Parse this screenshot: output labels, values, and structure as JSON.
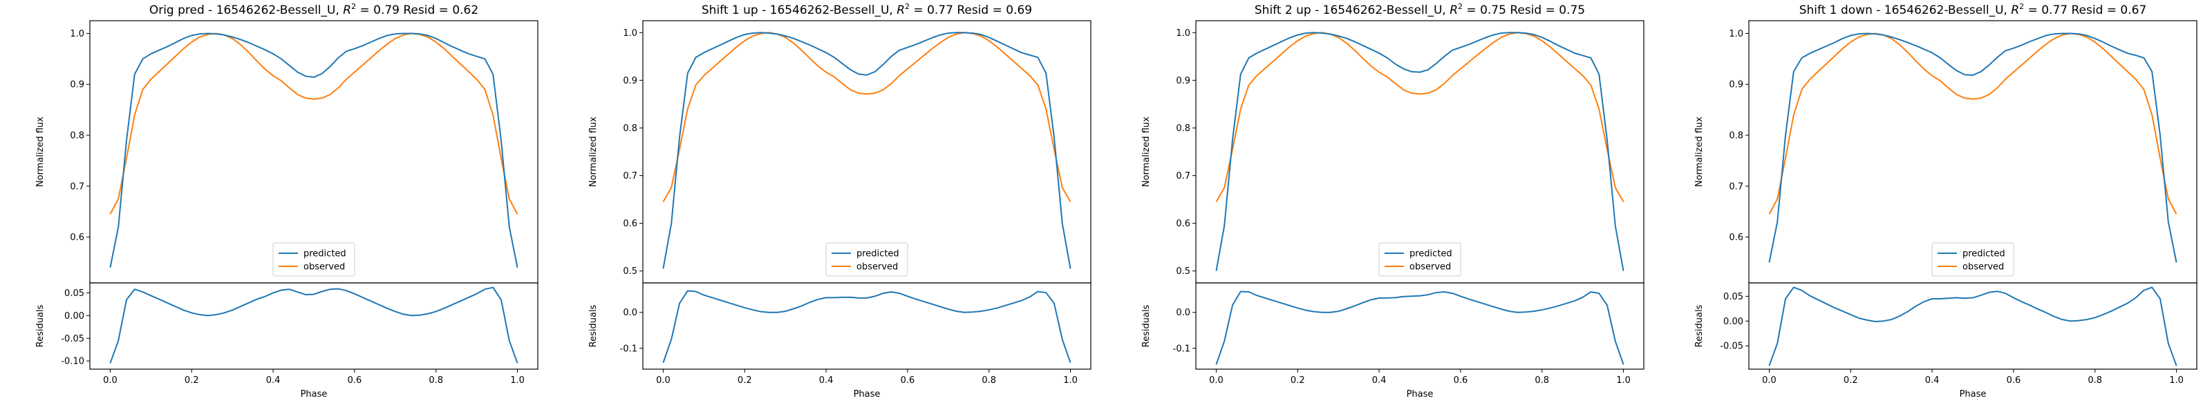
{
  "colors": {
    "predicted": "#1f77b4",
    "observed": "#ff7f0e"
  },
  "chart_data": [
    {
      "type": "line",
      "title": "Orig pred - 16546262-Bessell_U, $R^2 = 0.79$ Resid = 0.62",
      "title_parts": {
        "pre": "Orig pred - 16546262-Bessell_U, ",
        "sym": "R",
        "sup": "2",
        "post": " = 0.79 Resid = 0.62"
      },
      "xlabel": "Phase",
      "ylabel": "Normalized flux",
      "res_ylabel": "Residuals",
      "xlim": [
        -0.05,
        1.05
      ],
      "xticks": [
        0.0,
        0.2,
        0.4,
        0.6,
        0.8,
        1.0
      ],
      "ylim": [
        0.51,
        1.025
      ],
      "yticks": [
        0.6,
        0.7,
        0.8,
        0.9,
        1.0
      ],
      "res_ylim": [
        -0.118,
        0.072
      ],
      "res_yticks": [
        -0.1,
        -0.05,
        0.0,
        0.05
      ],
      "legend": {
        "position": "lower center",
        "entries": [
          "predicted",
          "observed"
        ]
      },
      "x": [
        0.0,
        0.02,
        0.04,
        0.06,
        0.08,
        0.1,
        0.12,
        0.14,
        0.16,
        0.18,
        0.2,
        0.22,
        0.24,
        0.26,
        0.28,
        0.3,
        0.32,
        0.34,
        0.36,
        0.38,
        0.4,
        0.42,
        0.44,
        0.46,
        0.48,
        0.5,
        0.52,
        0.54,
        0.56,
        0.58,
        0.6,
        0.62,
        0.64,
        0.66,
        0.68,
        0.7,
        0.72,
        0.74,
        0.76,
        0.78,
        0.8,
        0.82,
        0.84,
        0.86,
        0.88,
        0.9,
        0.92,
        0.94,
        0.96,
        0.98,
        1.0
      ],
      "series": [
        {
          "name": "predicted",
          "values": [
            0.54,
            0.62,
            0.79,
            0.92,
            0.95,
            0.96,
            0.967,
            0.974,
            0.982,
            0.99,
            0.996,
            0.999,
            1.0,
            0.999,
            0.997,
            0.993,
            0.988,
            0.982,
            0.975,
            0.968,
            0.96,
            0.95,
            0.937,
            0.924,
            0.916,
            0.914,
            0.921,
            0.935,
            0.952,
            0.965,
            0.97,
            0.976,
            0.983,
            0.99,
            0.996,
            0.999,
            1.0,
            1.0,
            0.999,
            0.996,
            0.99,
            0.982,
            0.974,
            0.967,
            0.96,
            0.955,
            0.95,
            0.92,
            0.79,
            0.62,
            0.54
          ]
        },
        {
          "name": "observed",
          "values": [
            0.645,
            0.675,
            0.755,
            0.84,
            0.89,
            0.91,
            0.925,
            0.94,
            0.955,
            0.97,
            0.983,
            0.993,
            0.998,
            1.0,
            0.997,
            0.99,
            0.978,
            0.963,
            0.946,
            0.93,
            0.917,
            0.907,
            0.893,
            0.88,
            0.873,
            0.871,
            0.873,
            0.88,
            0.893,
            0.91,
            0.924,
            0.938,
            0.952,
            0.966,
            0.979,
            0.99,
            0.997,
            1.0,
            0.998,
            0.993,
            0.983,
            0.97,
            0.955,
            0.94,
            0.925,
            0.91,
            0.89,
            0.84,
            0.755,
            0.675,
            0.645
          ]
        }
      ],
      "residuals": [
        -0.105,
        -0.055,
        0.035,
        0.058,
        0.052,
        0.044,
        0.036,
        0.028,
        0.02,
        0.012,
        0.006,
        0.002,
        0.0,
        0.002,
        0.006,
        0.012,
        0.02,
        0.028,
        0.036,
        0.042,
        0.05,
        0.056,
        0.058,
        0.052,
        0.046,
        0.047,
        0.053,
        0.058,
        0.059,
        0.055,
        0.048,
        0.04,
        0.032,
        0.024,
        0.016,
        0.009,
        0.003,
        0.0,
        0.001,
        0.004,
        0.009,
        0.016,
        0.024,
        0.032,
        0.04,
        0.048,
        0.058,
        0.062,
        0.035,
        -0.055,
        -0.105
      ]
    },
    {
      "type": "line",
      "title": "Shift 1 up - 16546262-Bessell_U, $R^2 = 0.77$ Resid = 0.69",
      "title_parts": {
        "pre": "Shift 1 up - 16546262-Bessell_U, ",
        "sym": "R",
        "sup": "2",
        "post": " = 0.77 Resid = 0.69"
      },
      "xlabel": "Phase",
      "ylabel": "Normalized flux",
      "res_ylabel": "Residuals",
      "xlim": [
        -0.05,
        1.05
      ],
      "xticks": [
        0.0,
        0.2,
        0.4,
        0.6,
        0.8,
        1.0
      ],
      "ylim": [
        0.475,
        1.025
      ],
      "yticks": [
        0.5,
        0.6,
        0.7,
        0.8,
        0.9,
        1.0
      ],
      "res_ylim": [
        -0.158,
        0.082
      ],
      "res_yticks": [
        -0.1,
        0.0
      ],
      "legend": {
        "position": "lower center",
        "entries": [
          "predicted",
          "observed"
        ]
      },
      "x": [
        0.0,
        0.02,
        0.04,
        0.06,
        0.08,
        0.1,
        0.12,
        0.14,
        0.16,
        0.18,
        0.2,
        0.22,
        0.24,
        0.26,
        0.28,
        0.3,
        0.32,
        0.34,
        0.36,
        0.38,
        0.4,
        0.42,
        0.44,
        0.46,
        0.48,
        0.5,
        0.52,
        0.54,
        0.56,
        0.58,
        0.6,
        0.62,
        0.64,
        0.66,
        0.68,
        0.7,
        0.72,
        0.74,
        0.76,
        0.78,
        0.8,
        0.82,
        0.84,
        0.86,
        0.88,
        0.9,
        0.92,
        0.94,
        0.96,
        0.98,
        1.0
      ],
      "series": [
        {
          "name": "predicted",
          "values": [
            0.505,
            0.6,
            0.78,
            0.915,
            0.948,
            0.958,
            0.966,
            0.974,
            0.982,
            0.99,
            0.996,
            0.999,
            1.0,
            0.999,
            0.997,
            0.993,
            0.988,
            0.981,
            0.974,
            0.966,
            0.958,
            0.948,
            0.935,
            0.922,
            0.913,
            0.911,
            0.918,
            0.933,
            0.95,
            0.963,
            0.969,
            0.975,
            0.982,
            0.989,
            0.995,
            0.999,
            1.0,
            1.0,
            0.999,
            0.996,
            0.99,
            0.982,
            0.974,
            0.966,
            0.958,
            0.953,
            0.948,
            0.915,
            0.78,
            0.6,
            0.505
          ]
        },
        {
          "name": "observed",
          "values": [
            0.645,
            0.675,
            0.755,
            0.84,
            0.89,
            0.91,
            0.925,
            0.94,
            0.955,
            0.97,
            0.983,
            0.993,
            0.998,
            1.0,
            0.997,
            0.99,
            0.978,
            0.963,
            0.946,
            0.93,
            0.917,
            0.907,
            0.893,
            0.88,
            0.873,
            0.871,
            0.873,
            0.88,
            0.893,
            0.91,
            0.924,
            0.938,
            0.952,
            0.966,
            0.979,
            0.99,
            0.997,
            1.0,
            0.998,
            0.993,
            0.983,
            0.97,
            0.955,
            0.94,
            0.925,
            0.91,
            0.89,
            0.84,
            0.755,
            0.675,
            0.645
          ]
        }
      ],
      "residuals": [
        -0.14,
        -0.075,
        0.025,
        0.06,
        0.058,
        0.048,
        0.041,
        0.034,
        0.027,
        0.02,
        0.013,
        0.007,
        0.002,
        0.0,
        0.0,
        0.003,
        0.01,
        0.018,
        0.028,
        0.036,
        0.041,
        0.041,
        0.042,
        0.042,
        0.04,
        0.04,
        0.045,
        0.053,
        0.057,
        0.053,
        0.045,
        0.037,
        0.03,
        0.023,
        0.016,
        0.009,
        0.003,
        0.0,
        0.001,
        0.003,
        0.007,
        0.012,
        0.019,
        0.026,
        0.033,
        0.043,
        0.058,
        0.055,
        0.025,
        -0.075,
        -0.14
      ]
    },
    {
      "type": "line",
      "title": "Shift 2 up - 16546262-Bessell_U, $R^2 = 0.75$ Resid = 0.75",
      "title_parts": {
        "pre": "Shift 2 up - 16546262-Bessell_U, ",
        "sym": "R",
        "sup": "2",
        "post": " = 0.75 Resid = 0.75"
      },
      "xlabel": "Phase",
      "ylabel": "Normalized flux",
      "res_ylabel": "Residuals",
      "xlim": [
        -0.05,
        1.05
      ],
      "xticks": [
        0.0,
        0.2,
        0.4,
        0.6,
        0.8,
        1.0
      ],
      "ylim": [
        0.475,
        1.025
      ],
      "yticks": [
        0.5,
        0.6,
        0.7,
        0.8,
        0.9,
        1.0
      ],
      "res_ylim": [
        -0.158,
        0.082
      ],
      "res_yticks": [
        -0.1,
        0.0
      ],
      "legend": {
        "position": "lower center",
        "entries": [
          "predicted",
          "observed"
        ]
      },
      "x": [
        0.0,
        0.02,
        0.04,
        0.06,
        0.08,
        0.1,
        0.12,
        0.14,
        0.16,
        0.18,
        0.2,
        0.22,
        0.24,
        0.26,
        0.28,
        0.3,
        0.32,
        0.34,
        0.36,
        0.38,
        0.4,
        0.42,
        0.44,
        0.46,
        0.48,
        0.5,
        0.52,
        0.54,
        0.56,
        0.58,
        0.6,
        0.62,
        0.64,
        0.66,
        0.68,
        0.7,
        0.72,
        0.74,
        0.76,
        0.78,
        0.8,
        0.82,
        0.84,
        0.86,
        0.88,
        0.9,
        0.92,
        0.94,
        0.96,
        0.98,
        1.0
      ],
      "series": [
        {
          "name": "predicted",
          "values": [
            0.5,
            0.595,
            0.775,
            0.913,
            0.947,
            0.957,
            0.965,
            0.973,
            0.981,
            0.989,
            0.995,
            0.999,
            1.0,
            0.999,
            0.997,
            0.993,
            0.988,
            0.981,
            0.973,
            0.965,
            0.957,
            0.947,
            0.934,
            0.924,
            0.918,
            0.917,
            0.922,
            0.935,
            0.95,
            0.963,
            0.969,
            0.975,
            0.982,
            0.989,
            0.995,
            0.999,
            1.0,
            1.0,
            0.999,
            0.996,
            0.99,
            0.982,
            0.973,
            0.965,
            0.957,
            0.952,
            0.947,
            0.913,
            0.775,
            0.595,
            0.5
          ]
        },
        {
          "name": "observed",
          "values": [
            0.645,
            0.675,
            0.755,
            0.84,
            0.89,
            0.91,
            0.925,
            0.94,
            0.955,
            0.97,
            0.983,
            0.993,
            0.998,
            1.0,
            0.997,
            0.99,
            0.978,
            0.963,
            0.946,
            0.93,
            0.917,
            0.907,
            0.893,
            0.88,
            0.873,
            0.871,
            0.873,
            0.88,
            0.893,
            0.91,
            0.924,
            0.938,
            0.952,
            0.966,
            0.979,
            0.99,
            0.997,
            1.0,
            0.998,
            0.993,
            0.983,
            0.97,
            0.955,
            0.94,
            0.925,
            0.91,
            0.89,
            0.84,
            0.755,
            0.675,
            0.645
          ]
        }
      ],
      "residuals": [
        -0.145,
        -0.08,
        0.02,
        0.058,
        0.057,
        0.047,
        0.04,
        0.033,
        0.026,
        0.019,
        0.012,
        0.006,
        0.002,
        0.0,
        0.0,
        0.003,
        0.01,
        0.018,
        0.027,
        0.035,
        0.04,
        0.04,
        0.041,
        0.044,
        0.045,
        0.046,
        0.049,
        0.055,
        0.057,
        0.053,
        0.045,
        0.037,
        0.03,
        0.023,
        0.016,
        0.009,
        0.003,
        0.0,
        0.001,
        0.003,
        0.007,
        0.012,
        0.018,
        0.025,
        0.032,
        0.042,
        0.057,
        0.053,
        0.02,
        -0.08,
        -0.145
      ]
    },
    {
      "type": "line",
      "title": "Shift 1 down - 16546262-Bessell_U, $R^2 = 0.77$ Resid = 0.67",
      "title_parts": {
        "pre": "Shift 1 down - 16546262-Bessell_U, ",
        "sym": "R",
        "sup": "2",
        "post": " = 0.77 Resid = 0.67"
      },
      "xlabel": "Phase",
      "ylabel": "Normalized flux",
      "res_ylabel": "Residuals",
      "xlim": [
        -0.05,
        1.05
      ],
      "xticks": [
        0.0,
        0.2,
        0.4,
        0.6,
        0.8,
        1.0
      ],
      "ylim": [
        0.51,
        1.025
      ],
      "yticks": [
        0.6,
        0.7,
        0.8,
        0.9,
        1.0
      ],
      "res_ylim": [
        -0.097,
        0.077
      ],
      "res_yticks": [
        -0.05,
        0.0,
        0.05
      ],
      "legend": {
        "position": "lower center",
        "entries": [
          "predicted",
          "observed"
        ]
      },
      "x": [
        0.0,
        0.02,
        0.04,
        0.06,
        0.08,
        0.1,
        0.12,
        0.14,
        0.16,
        0.18,
        0.2,
        0.22,
        0.24,
        0.26,
        0.28,
        0.3,
        0.32,
        0.34,
        0.36,
        0.38,
        0.4,
        0.42,
        0.44,
        0.46,
        0.48,
        0.5,
        0.52,
        0.54,
        0.56,
        0.58,
        0.6,
        0.62,
        0.64,
        0.66,
        0.68,
        0.7,
        0.72,
        0.74,
        0.76,
        0.78,
        0.8,
        0.82,
        0.84,
        0.86,
        0.88,
        0.9,
        0.92,
        0.94,
        0.96,
        0.98,
        1.0
      ],
      "series": [
        {
          "name": "predicted",
          "values": [
            0.55,
            0.63,
            0.8,
            0.925,
            0.952,
            0.961,
            0.968,
            0.975,
            0.982,
            0.99,
            0.996,
            0.999,
            1.0,
            0.999,
            0.997,
            0.993,
            0.988,
            0.982,
            0.976,
            0.969,
            0.962,
            0.952,
            0.939,
            0.927,
            0.919,
            0.918,
            0.925,
            0.938,
            0.953,
            0.966,
            0.971,
            0.977,
            0.984,
            0.99,
            0.996,
            0.999,
            1.0,
            1.0,
            0.999,
            0.996,
            0.99,
            0.983,
            0.975,
            0.968,
            0.961,
            0.957,
            0.952,
            0.925,
            0.8,
            0.63,
            0.55
          ]
        },
        {
          "name": "observed",
          "values": [
            0.645,
            0.675,
            0.755,
            0.84,
            0.89,
            0.91,
            0.925,
            0.94,
            0.955,
            0.97,
            0.983,
            0.993,
            0.998,
            1.0,
            0.997,
            0.99,
            0.978,
            0.963,
            0.946,
            0.93,
            0.917,
            0.907,
            0.893,
            0.88,
            0.873,
            0.871,
            0.873,
            0.88,
            0.893,
            0.91,
            0.924,
            0.938,
            0.952,
            0.966,
            0.979,
            0.99,
            0.997,
            1.0,
            0.998,
            0.993,
            0.983,
            0.97,
            0.955,
            0.94,
            0.925,
            0.91,
            0.89,
            0.84,
            0.755,
            0.675,
            0.645
          ]
        }
      ],
      "residuals": [
        -0.09,
        -0.045,
        0.045,
        0.068,
        0.062,
        0.051,
        0.043,
        0.035,
        0.027,
        0.02,
        0.013,
        0.006,
        0.002,
        -0.001,
        0.0,
        0.003,
        0.01,
        0.019,
        0.03,
        0.039,
        0.045,
        0.045,
        0.046,
        0.047,
        0.046,
        0.047,
        0.052,
        0.058,
        0.06,
        0.056,
        0.047,
        0.039,
        0.032,
        0.024,
        0.017,
        0.009,
        0.003,
        0.0,
        0.001,
        0.003,
        0.007,
        0.013,
        0.02,
        0.028,
        0.036,
        0.047,
        0.062,
        0.068,
        0.045,
        -0.045,
        -0.09
      ]
    }
  ]
}
